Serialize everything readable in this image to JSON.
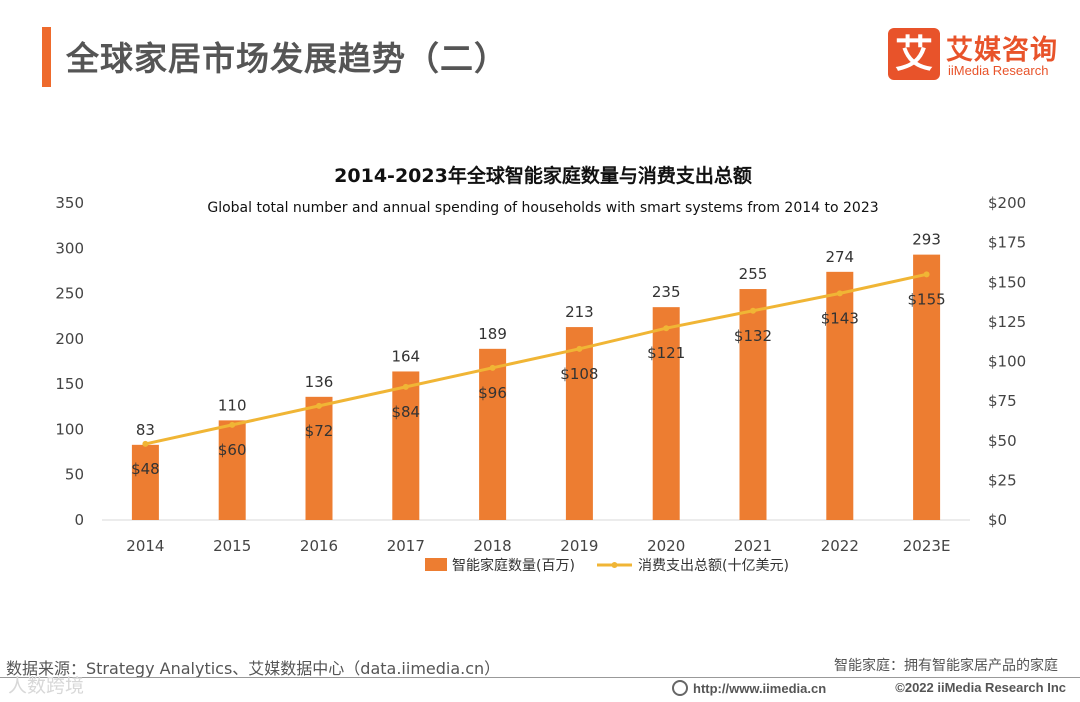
{
  "header": {
    "title": "全球家居市场发展趋势（二）"
  },
  "logo": {
    "mark": "艾",
    "name_cn": "艾媒咨询",
    "name_en": "iiMedia Research"
  },
  "colors": {
    "accent": "#ee6a2c",
    "bar": "#ed7d31",
    "line": "#f0b535"
  },
  "chart_data": {
    "type": "bar",
    "title": "2014-2023年全球智能家庭数量与消费支出总额",
    "subtitle": "Global total number and  annual spending of households with smart systems from 2014 to 2023",
    "categories": [
      "2014",
      "2015",
      "2016",
      "2017",
      "2018",
      "2019",
      "2020",
      "2021",
      "2022",
      "2023E"
    ],
    "series": [
      {
        "name": "智能家庭数量(百万)",
        "type": "bar",
        "axis": "left",
        "values": [
          83,
          110,
          136,
          164,
          189,
          213,
          235,
          255,
          274,
          293
        ],
        "labels": [
          "83",
          "110",
          "136",
          "164",
          "189",
          "213",
          "235",
          "255",
          "274",
          "293"
        ]
      },
      {
        "name": "消费支出总额(十亿美元)",
        "type": "line",
        "axis": "right",
        "values": [
          48,
          60,
          72,
          84,
          96,
          108,
          121,
          132,
          143,
          155
        ],
        "labels": [
          "$48",
          "$60",
          "$72",
          "$84",
          "$96",
          "$108",
          "$121",
          "$132",
          "$143",
          "$155"
        ]
      }
    ],
    "ylim_left": [
      0,
      350
    ],
    "yticks_left": [
      "0",
      "50",
      "100",
      "150",
      "200",
      "250",
      "300",
      "350"
    ],
    "ylim_right": [
      0,
      200
    ],
    "yticks_right": [
      "$0",
      "$25",
      "$50",
      "$75",
      "$100",
      "$125",
      "$150",
      "$175",
      "$200"
    ],
    "legend": "bottom"
  },
  "footer": {
    "source": "数据来源：Strategy Analytics、艾媒数据中心（data.iimedia.cn）",
    "definition": "智能家庭：拥有智能家居产品的家庭",
    "watermark": "人数跨境",
    "url": "http://www.iimedia.cn",
    "copyright": "©2022  iiMedia Research  Inc"
  }
}
